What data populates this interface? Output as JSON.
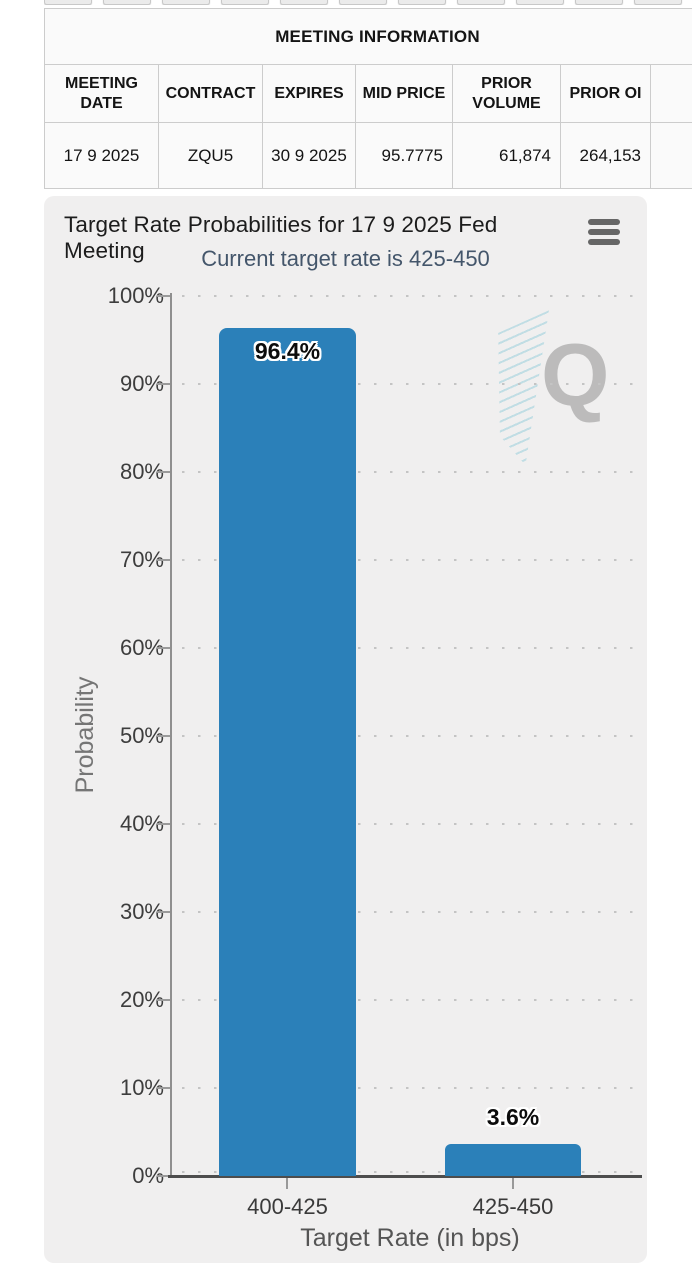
{
  "top_tab_strip": {
    "tab_count": 11,
    "note": "row of tabs cut off at top screen edge"
  },
  "meeting_table": {
    "title": "MEETING INFORMATION",
    "columns": [
      "MEETING DATE",
      "CONTRACT",
      "EXPIRES",
      "MID PRICE",
      "PRIOR VOLUME",
      "PRIOR OI"
    ],
    "row": {
      "meeting_date": "17 9 2025",
      "contract": "ZQU5",
      "expires": "30 9 2025",
      "mid_price": "95.7775",
      "prior_volume": "61,874",
      "prior_oi": "264,153"
    }
  },
  "chart": {
    "title": "Target Rate Probabilities for 17 9 2025 Fed Meeting",
    "subtitle": "Current target rate is 425-450",
    "menu_icon": "hamburger-icon",
    "watermark_letter": "Q",
    "colors": {
      "bar": "#2b80b9",
      "card_background": "#f0efef",
      "subtitle_text": "#44566b",
      "x_axis": "#4d4d4d",
      "grid_dots": "#c4c4c4",
      "watermark_gray": "#b3b3b3",
      "watermark_teal": "#7dc4d4"
    }
  },
  "chart_data": {
    "type": "bar",
    "categories": [
      "400-425",
      "425-450"
    ],
    "values": [
      96.4,
      3.6
    ],
    "bar_labels": [
      "96.4%",
      "3.6%"
    ],
    "title": "Target Rate Probabilities for 17 9 2025 Fed Meeting",
    "subtitle": "Current target rate is 425-450",
    "xlabel": "Target Rate (in bps)",
    "ylabel": "Probability",
    "ylim": [
      0,
      100
    ],
    "ytick_interval": 10,
    "yticks": [
      "100%",
      "90%",
      "80%",
      "70%",
      "60%",
      "50%",
      "40%",
      "30%",
      "20%",
      "10%",
      "0%"
    ],
    "grid": "dotted horizontal gridlines",
    "legend_position": "none"
  }
}
